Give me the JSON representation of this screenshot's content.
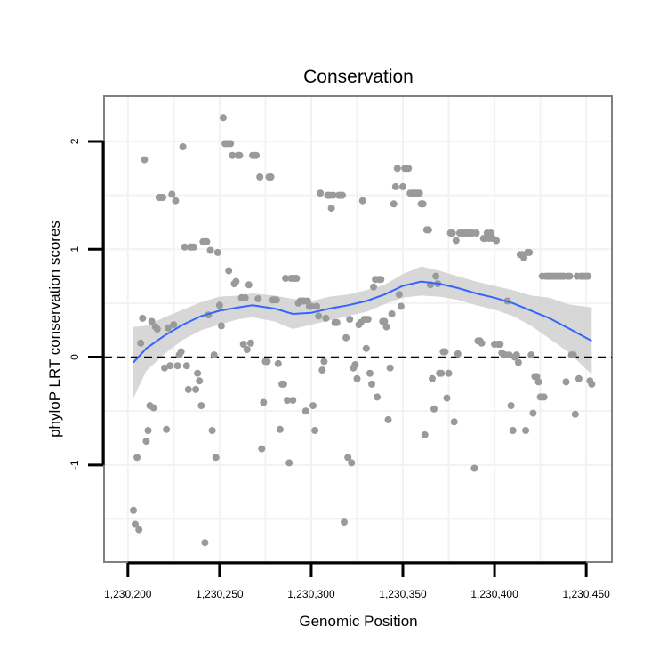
{
  "chart_data": {
    "type": "scatter",
    "title": "Conservation",
    "xlabel": "Genomic Position",
    "ylabel": "phyloP LRT conservation scores",
    "xlim": [
      1230187,
      1230464
    ],
    "ylim": [
      -1.9,
      2.42
    ],
    "x_ticks": [
      1230200,
      1230250,
      1230300,
      1230350,
      1230400,
      1230450
    ],
    "x_tick_labels": [
      "1,230,200",
      "1,230,250",
      "1,230,300",
      "1,230,350",
      "1,230,400",
      "1,230,450"
    ],
    "y_ticks": [
      -1,
      0,
      1,
      2
    ],
    "y_tick_labels": [
      "-1",
      "0",
      "1",
      "2"
    ],
    "grid": true,
    "reference_line": {
      "y": 0,
      "style": "dashed",
      "color": "#000000"
    },
    "points_color": "#9a9a9a",
    "fit_color": "#3366ff",
    "band_color": "#d3d3d3",
    "points": [
      [
        1230203,
        -1.42
      ],
      [
        1230204,
        -1.55
      ],
      [
        1230205,
        -0.93
      ],
      [
        1230206,
        -1.6
      ],
      [
        1230207,
        0.13
      ],
      [
        1230208,
        0.36
      ],
      [
        1230209,
        1.83
      ],
      [
        1230210,
        -0.78
      ],
      [
        1230211,
        -0.68
      ],
      [
        1230212,
        -0.45
      ],
      [
        1230213,
        0.33
      ],
      [
        1230214,
        -0.47
      ],
      [
        1230215,
        0.28
      ],
      [
        1230216,
        0.26
      ],
      [
        1230217,
        1.48
      ],
      [
        1230218,
        1.48
      ],
      [
        1230219,
        1.48
      ],
      [
        1230220,
        -0.1
      ],
      [
        1230221,
        -0.67
      ],
      [
        1230222,
        0.27
      ],
      [
        1230223,
        -0.08
      ],
      [
        1230224,
        1.51
      ],
      [
        1230225,
        0.3
      ],
      [
        1230226,
        1.45
      ],
      [
        1230227,
        -0.08
      ],
      [
        1230228,
        0.02
      ],
      [
        1230229,
        0.05
      ],
      [
        1230230,
        1.95
      ],
      [
        1230231,
        1.02
      ],
      [
        1230232,
        -0.08
      ],
      [
        1230233,
        -0.3
      ],
      [
        1230234,
        1.02
      ],
      [
        1230235,
        1.02
      ],
      [
        1230236,
        1.02
      ],
      [
        1230237,
        -0.3
      ],
      [
        1230238,
        -0.15
      ],
      [
        1230239,
        -0.22
      ],
      [
        1230240,
        -0.45
      ],
      [
        1230241,
        1.07
      ],
      [
        1230242,
        -1.72
      ],
      [
        1230243,
        1.07
      ],
      [
        1230244,
        0.39
      ],
      [
        1230245,
        0.99
      ],
      [
        1230246,
        -0.68
      ],
      [
        1230247,
        0.02
      ],
      [
        1230248,
        -0.93
      ],
      [
        1230249,
        0.97
      ],
      [
        1230250,
        0.48
      ],
      [
        1230251,
        0.29
      ],
      [
        1230252,
        2.22
      ],
      [
        1230253,
        1.98
      ],
      [
        1230254,
        1.98
      ],
      [
        1230255,
        0.8
      ],
      [
        1230256,
        1.98
      ],
      [
        1230257,
        1.87
      ],
      [
        1230258,
        0.68
      ],
      [
        1230259,
        0.7
      ],
      [
        1230260,
        1.87
      ],
      [
        1230261,
        1.87
      ],
      [
        1230262,
        0.55
      ],
      [
        1230263,
        0.12
      ],
      [
        1230264,
        0.55
      ],
      [
        1230265,
        0.07
      ],
      [
        1230266,
        0.67
      ],
      [
        1230267,
        0.13
      ],
      [
        1230268,
        1.87
      ],
      [
        1230269,
        1.87
      ],
      [
        1230270,
        1.87
      ],
      [
        1230271,
        0.54
      ],
      [
        1230272,
        1.67
      ],
      [
        1230273,
        -0.85
      ],
      [
        1230274,
        -0.42
      ],
      [
        1230275,
        -0.04
      ],
      [
        1230276,
        -0.04
      ],
      [
        1230277,
        1.67
      ],
      [
        1230278,
        1.67
      ],
      [
        1230279,
        0.53
      ],
      [
        1230280,
        0.53
      ],
      [
        1230281,
        0.53
      ],
      [
        1230282,
        -0.06
      ],
      [
        1230283,
        -0.67
      ],
      [
        1230284,
        -0.25
      ],
      [
        1230285,
        -0.25
      ],
      [
        1230286,
        0.73
      ],
      [
        1230287,
        -0.4
      ],
      [
        1230288,
        -0.98
      ],
      [
        1230289,
        0.73
      ],
      [
        1230290,
        -0.4
      ],
      [
        1230291,
        0.73
      ],
      [
        1230292,
        0.73
      ],
      [
        1230293,
        0.5
      ],
      [
        1230294,
        0.52
      ],
      [
        1230295,
        0.52
      ],
      [
        1230296,
        0.52
      ],
      [
        1230297,
        -0.5
      ],
      [
        1230298,
        0.52
      ],
      [
        1230299,
        0.47
      ],
      [
        1230300,
        0.47
      ],
      [
        1230301,
        -0.45
      ],
      [
        1230302,
        -0.68
      ],
      [
        1230303,
        0.47
      ],
      [
        1230304,
        0.38
      ],
      [
        1230305,
        1.52
      ],
      [
        1230306,
        -0.12
      ],
      [
        1230307,
        -0.04
      ],
      [
        1230308,
        0.36
      ],
      [
        1230309,
        1.5
      ],
      [
        1230310,
        1.5
      ],
      [
        1230311,
        1.38
      ],
      [
        1230312,
        1.5
      ],
      [
        1230313,
        0.32
      ],
      [
        1230314,
        0.32
      ],
      [
        1230315,
        1.5
      ],
      [
        1230316,
        1.5
      ],
      [
        1230317,
        1.5
      ],
      [
        1230318,
        -1.53
      ],
      [
        1230319,
        0.18
      ],
      [
        1230320,
        -0.93
      ],
      [
        1230321,
        0.35
      ],
      [
        1230322,
        -0.98
      ],
      [
        1230323,
        -0.1
      ],
      [
        1230324,
        -0.07
      ],
      [
        1230325,
        -0.2
      ],
      [
        1230326,
        0.3
      ],
      [
        1230327,
        0.32
      ],
      [
        1230328,
        1.45
      ],
      [
        1230329,
        0.35
      ],
      [
        1230330,
        0.08
      ],
      [
        1230331,
        0.35
      ],
      [
        1230332,
        -0.15
      ],
      [
        1230333,
        -0.25
      ],
      [
        1230334,
        0.65
      ],
      [
        1230335,
        0.72
      ],
      [
        1230336,
        -0.37
      ],
      [
        1230337,
        0.72
      ],
      [
        1230338,
        0.72
      ],
      [
        1230339,
        0.33
      ],
      [
        1230340,
        0.33
      ],
      [
        1230341,
        0.28
      ],
      [
        1230342,
        -0.58
      ],
      [
        1230343,
        -0.1
      ],
      [
        1230344,
        0.4
      ],
      [
        1230345,
        1.42
      ],
      [
        1230346,
        1.58
      ],
      [
        1230347,
        1.75
      ],
      [
        1230348,
        0.58
      ],
      [
        1230349,
        0.47
      ],
      [
        1230350,
        1.58
      ],
      [
        1230351,
        1.75
      ],
      [
        1230352,
        1.75
      ],
      [
        1230353,
        1.75
      ],
      [
        1230354,
        1.52
      ],
      [
        1230355,
        1.52
      ],
      [
        1230356,
        1.52
      ],
      [
        1230357,
        1.52
      ],
      [
        1230358,
        1.52
      ],
      [
        1230359,
        1.52
      ],
      [
        1230360,
        1.42
      ],
      [
        1230361,
        1.42
      ],
      [
        1230362,
        -0.72
      ],
      [
        1230363,
        1.18
      ],
      [
        1230364,
        1.18
      ],
      [
        1230365,
        0.67
      ],
      [
        1230366,
        -0.2
      ],
      [
        1230367,
        -0.48
      ],
      [
        1230368,
        0.75
      ],
      [
        1230369,
        0.68
      ],
      [
        1230370,
        -0.15
      ],
      [
        1230371,
        -0.15
      ],
      [
        1230372,
        0.05
      ],
      [
        1230373,
        0.05
      ],
      [
        1230374,
        -0.38
      ],
      [
        1230375,
        -0.15
      ],
      [
        1230376,
        1.15
      ],
      [
        1230377,
        1.15
      ],
      [
        1230378,
        -0.6
      ],
      [
        1230379,
        1.08
      ],
      [
        1230380,
        0.03
      ],
      [
        1230381,
        1.15
      ],
      [
        1230382,
        1.15
      ],
      [
        1230383,
        1.15
      ],
      [
        1230384,
        1.15
      ],
      [
        1230385,
        1.15
      ],
      [
        1230386,
        1.15
      ],
      [
        1230387,
        1.15
      ],
      [
        1230388,
        1.15
      ],
      [
        1230389,
        -1.03
      ],
      [
        1230390,
        1.15
      ],
      [
        1230391,
        0.15
      ],
      [
        1230392,
        0.15
      ],
      [
        1230393,
        0.13
      ],
      [
        1230394,
        1.1
      ],
      [
        1230395,
        1.1
      ],
      [
        1230396,
        1.15
      ],
      [
        1230397,
        1.1
      ],
      [
        1230398,
        1.15
      ],
      [
        1230399,
        1.1
      ],
      [
        1230400,
        0.12
      ],
      [
        1230401,
        1.08
      ],
      [
        1230402,
        0.12
      ],
      [
        1230403,
        0.12
      ],
      [
        1230404,
        0.04
      ],
      [
        1230405,
        0.02
      ],
      [
        1230406,
        0.02
      ],
      [
        1230407,
        0.52
      ],
      [
        1230408,
        0.02
      ],
      [
        1230409,
        -0.45
      ],
      [
        1230410,
        -0.68
      ],
      [
        1230411,
        0.0
      ],
      [
        1230412,
        0.02
      ],
      [
        1230413,
        -0.05
      ],
      [
        1230414,
        0.95
      ],
      [
        1230415,
        0.95
      ],
      [
        1230416,
        0.92
      ],
      [
        1230417,
        -0.68
      ],
      [
        1230418,
        0.97
      ],
      [
        1230419,
        0.97
      ],
      [
        1230420,
        0.02
      ],
      [
        1230421,
        -0.52
      ],
      [
        1230422,
        -0.18
      ],
      [
        1230423,
        -0.18
      ],
      [
        1230424,
        -0.23
      ],
      [
        1230425,
        -0.37
      ],
      [
        1230426,
        0.75
      ],
      [
        1230427,
        -0.37
      ],
      [
        1230428,
        0.75
      ],
      [
        1230429,
        0.75
      ],
      [
        1230430,
        0.75
      ],
      [
        1230431,
        0.75
      ],
      [
        1230432,
        0.75
      ],
      [
        1230433,
        0.75
      ],
      [
        1230434,
        0.75
      ],
      [
        1230435,
        0.75
      ],
      [
        1230436,
        0.75
      ],
      [
        1230437,
        0.75
      ],
      [
        1230438,
        0.75
      ],
      [
        1230439,
        -0.23
      ],
      [
        1230440,
        0.75
      ],
      [
        1230441,
        0.75
      ],
      [
        1230442,
        0.02
      ],
      [
        1230443,
        0.02
      ],
      [
        1230444,
        -0.53
      ],
      [
        1230445,
        0.75
      ],
      [
        1230446,
        -0.2
      ],
      [
        1230447,
        0.75
      ],
      [
        1230448,
        0.75
      ],
      [
        1230449,
        0.75
      ],
      [
        1230450,
        0.75
      ],
      [
        1230451,
        0.75
      ],
      [
        1230452,
        -0.22
      ],
      [
        1230453,
        -0.25
      ]
    ],
    "smooth_fit": {
      "x": [
        1230203,
        1230210,
        1230220,
        1230230,
        1230240,
        1230250,
        1230260,
        1230268,
        1230280,
        1230290,
        1230300,
        1230310,
        1230320,
        1230330,
        1230340,
        1230350,
        1230360,
        1230370,
        1230380,
        1230390,
        1230400,
        1230410,
        1230420,
        1230430,
        1230440,
        1230453
      ],
      "y": [
        -0.05,
        0.08,
        0.2,
        0.3,
        0.38,
        0.43,
        0.46,
        0.48,
        0.45,
        0.4,
        0.41,
        0.45,
        0.48,
        0.52,
        0.58,
        0.66,
        0.7,
        0.68,
        0.64,
        0.59,
        0.55,
        0.5,
        0.43,
        0.36,
        0.27,
        0.15
      ],
      "lower": [
        -0.38,
        -0.13,
        0.03,
        0.16,
        0.25,
        0.3,
        0.35,
        0.37,
        0.33,
        0.26,
        0.3,
        0.34,
        0.38,
        0.42,
        0.49,
        0.55,
        0.57,
        0.56,
        0.53,
        0.48,
        0.44,
        0.38,
        0.29,
        0.17,
        0.05,
        -0.16
      ],
      "upper": [
        0.28,
        0.29,
        0.37,
        0.44,
        0.51,
        0.56,
        0.57,
        0.59,
        0.57,
        0.54,
        0.52,
        0.56,
        0.58,
        0.62,
        0.67,
        0.77,
        0.84,
        0.8,
        0.75,
        0.7,
        0.66,
        0.62,
        0.57,
        0.55,
        0.49,
        0.46
      ]
    }
  }
}
